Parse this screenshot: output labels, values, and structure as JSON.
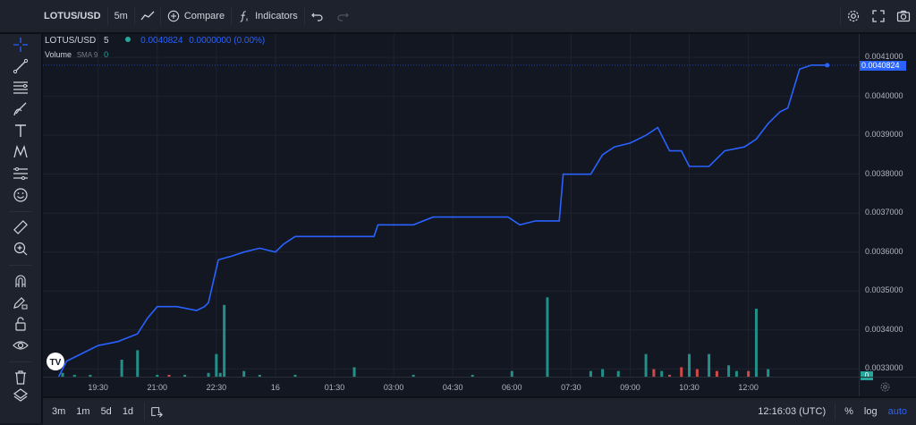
{
  "toolbar": {
    "symbol": "LOTUS/USD",
    "interval": "5m",
    "compare_label": "Compare",
    "indicators_label": "Indicators"
  },
  "legend": {
    "symbol": "LOTUS/USD",
    "interval": "5",
    "last": "0.0040824",
    "change": "0.0000000 (0.00%)",
    "volume_label": "Volume",
    "volume_sma": "SMA 9",
    "volume_value": "0"
  },
  "price_axis": {
    "ticks": [
      "0.0041000",
      "0.0040000",
      "0.0039000",
      "0.0038000",
      "0.0037000",
      "0.0036000",
      "0.0035000",
      "0.0034000",
      "0.0033000"
    ],
    "current_label": "0.0040824",
    "volume_badge": "0"
  },
  "time_axis": {
    "ticks": [
      "19:30",
      "21:00",
      "22:30",
      "16",
      "01:30",
      "03:00",
      "04:30",
      "06:00",
      "07:30",
      "09:00",
      "10:30",
      "12:00"
    ]
  },
  "bottombar": {
    "ranges": [
      "3m",
      "1m",
      "5d",
      "1d"
    ],
    "clock": "12:16:03 (UTC)",
    "percent": "%",
    "log": "log",
    "auto": "auto"
  },
  "colors": {
    "line": "#2962ff",
    "vol_up": "#26a69a",
    "vol_down": "#ef5350",
    "bg": "#131722",
    "panel": "#1e222d"
  },
  "chart_data": {
    "type": "line",
    "title": "",
    "ylim": [
      0.00328,
      0.00416
    ],
    "price": [
      [
        18.5,
        0.00328
      ],
      [
        18.7,
        0.00332
      ],
      [
        19.1,
        0.00334
      ],
      [
        19.5,
        0.00336
      ],
      [
        20.0,
        0.00337
      ],
      [
        20.5,
        0.00339
      ],
      [
        20.75,
        0.00343
      ],
      [
        21.0,
        0.00346
      ],
      [
        21.5,
        0.00346
      ],
      [
        22.0,
        0.00345
      ],
      [
        22.2,
        0.00346
      ],
      [
        22.3,
        0.00347
      ],
      [
        22.55,
        0.00358
      ],
      [
        22.9,
        0.00359
      ],
      [
        23.2,
        0.0036
      ],
      [
        23.6,
        0.00361
      ],
      [
        24.0,
        0.0036
      ],
      [
        24.2,
        0.00362
      ],
      [
        24.5,
        0.00364
      ],
      [
        25.3,
        0.00364
      ],
      [
        25.45,
        0.00364
      ],
      [
        26.5,
        0.00364
      ],
      [
        26.6,
        0.00367
      ],
      [
        27.0,
        0.00367
      ],
      [
        27.5,
        0.00367
      ],
      [
        28.0,
        0.00369
      ],
      [
        29.0,
        0.00369
      ],
      [
        29.9,
        0.00369
      ],
      [
        30.2,
        0.00367
      ],
      [
        30.6,
        0.00368
      ],
      [
        31.2,
        0.00368
      ],
      [
        31.3,
        0.0038
      ],
      [
        32.0,
        0.0038
      ],
      [
        32.3,
        0.00385
      ],
      [
        32.6,
        0.00387
      ],
      [
        33.0,
        0.00388
      ],
      [
        33.4,
        0.0039
      ],
      [
        33.7,
        0.00392
      ],
      [
        34.0,
        0.00386
      ],
      [
        34.3,
        0.00386
      ],
      [
        34.5,
        0.00382
      ],
      [
        35.0,
        0.00382
      ],
      [
        35.4,
        0.00386
      ],
      [
        35.9,
        0.00387
      ],
      [
        36.2,
        0.00389
      ],
      [
        36.5,
        0.00393
      ],
      [
        36.8,
        0.00396
      ],
      [
        37.0,
        0.00397
      ],
      [
        37.3,
        0.00407
      ],
      [
        37.6,
        0.00408
      ],
      [
        38.0,
        0.00408
      ]
    ],
    "volume": [
      [
        18.6,
        2,
        "up"
      ],
      [
        18.9,
        1,
        "up"
      ],
      [
        19.3,
        1,
        "up"
      ],
      [
        20.1,
        9,
        "up"
      ],
      [
        20.5,
        14,
        "up"
      ],
      [
        21.0,
        1,
        "up"
      ],
      [
        21.3,
        1,
        "down"
      ],
      [
        21.7,
        1,
        "up"
      ],
      [
        22.3,
        2,
        "up"
      ],
      [
        22.5,
        12,
        "up"
      ],
      [
        22.6,
        2,
        "up"
      ],
      [
        22.7,
        38,
        "up"
      ],
      [
        23.2,
        3,
        "up"
      ],
      [
        23.6,
        1,
        "up"
      ],
      [
        24.5,
        1,
        "up"
      ],
      [
        26.0,
        5,
        "up"
      ],
      [
        27.5,
        1,
        "up"
      ],
      [
        29.0,
        1,
        "up"
      ],
      [
        30.0,
        3,
        "up"
      ],
      [
        30.9,
        42,
        "up"
      ],
      [
        32.0,
        3,
        "up"
      ],
      [
        32.3,
        4,
        "up"
      ],
      [
        32.7,
        3,
        "up"
      ],
      [
        33.4,
        12,
        "up"
      ],
      [
        33.6,
        4,
        "down"
      ],
      [
        33.8,
        3,
        "up"
      ],
      [
        34.0,
        1,
        "down"
      ],
      [
        34.3,
        5,
        "down"
      ],
      [
        34.5,
        12,
        "up"
      ],
      [
        34.7,
        4,
        "down"
      ],
      [
        35.0,
        12,
        "up"
      ],
      [
        35.2,
        3,
        "down"
      ],
      [
        35.5,
        6,
        "up"
      ],
      [
        35.7,
        3,
        "up"
      ],
      [
        36.0,
        3,
        "down"
      ],
      [
        36.2,
        36,
        "up"
      ],
      [
        36.5,
        4,
        "up"
      ]
    ]
  }
}
